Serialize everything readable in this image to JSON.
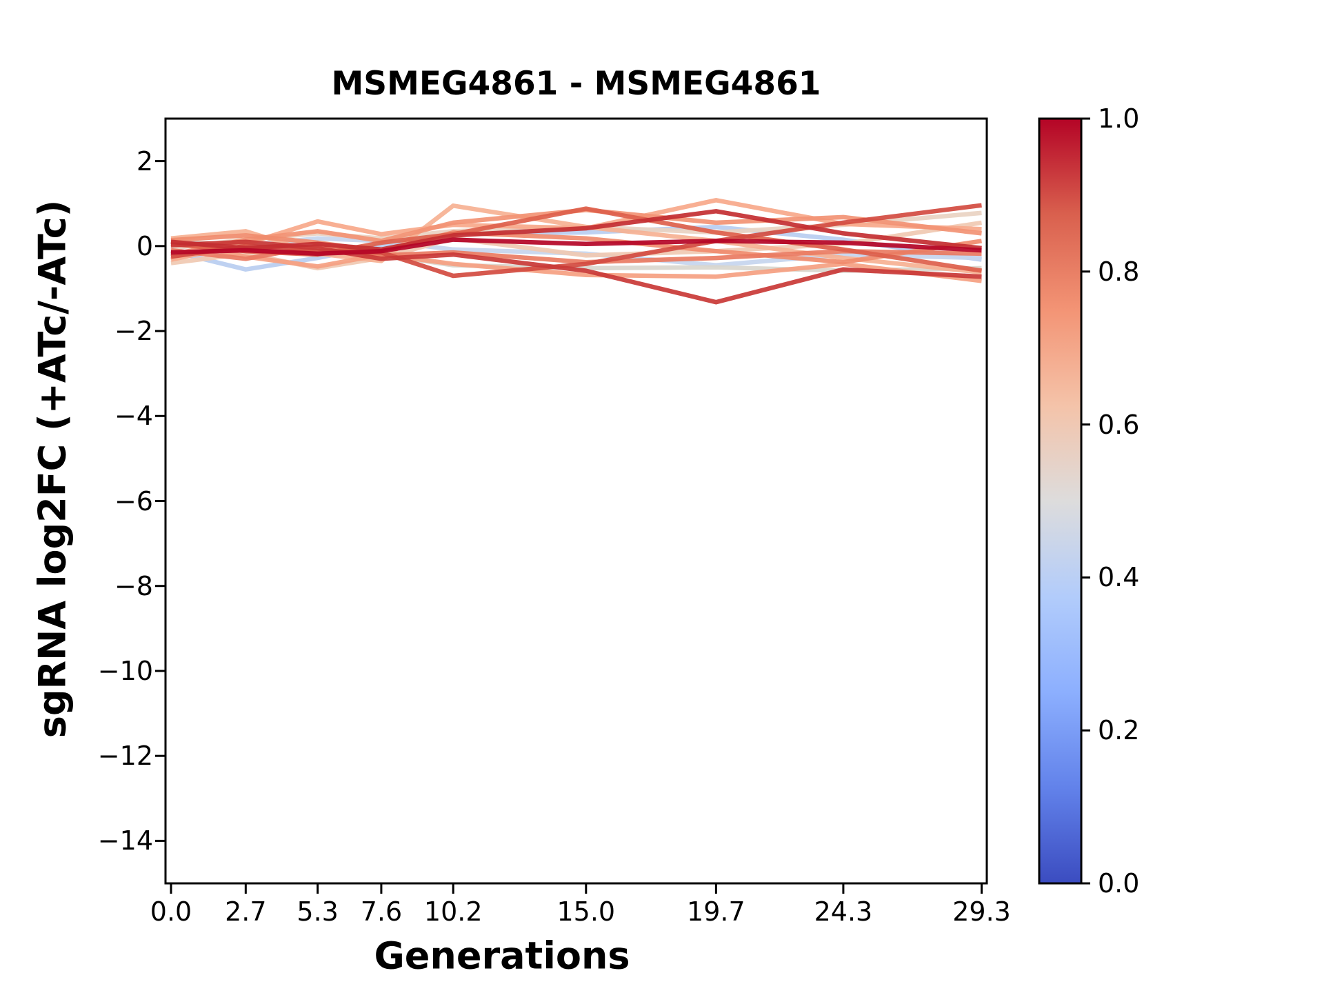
{
  "chart_data": {
    "type": "line",
    "title": "MSMEG4861 - MSMEG4861",
    "xlabel": "Generations",
    "ylabel": "sgRNA log2FC (+ATc/-ATc)",
    "x": [
      0.0,
      2.7,
      5.3,
      7.6,
      10.2,
      15.0,
      19.7,
      24.3,
      29.3
    ],
    "xtick_labels": [
      "0.0",
      "2.7",
      "5.3",
      "7.6",
      "10.2",
      "15.0",
      "19.7",
      "24.3",
      "29.3"
    ],
    "ytick_values": [
      2,
      0,
      -2,
      -4,
      -6,
      -8,
      -10,
      -12,
      -14
    ],
    "ytick_labels": [
      "2",
      "0",
      "−2",
      "−4",
      "−6",
      "−8",
      "−10",
      "−12",
      "−14"
    ],
    "ylim": [
      -15,
      3
    ],
    "xlim": [
      -0.2,
      29.5
    ],
    "grid": false,
    "legend": "none",
    "background": "#ffffff",
    "colorbar": {
      "orientation": "vertical",
      "colormap": "coolwarm",
      "tick_labels": [
        "1.0",
        "0.8",
        "0.6",
        "0.4",
        "0.2",
        "0.0"
      ],
      "tick_values": [
        1.0,
        0.8,
        0.6,
        0.4,
        0.2,
        0.0
      ],
      "stops": [
        {
          "pos": 0.0,
          "color": "#3b4cc0"
        },
        {
          "pos": 0.125,
          "color": "#6282ea"
        },
        {
          "pos": 0.25,
          "color": "#8caffe"
        },
        {
          "pos": 0.375,
          "color": "#b2ccfb"
        },
        {
          "pos": 0.5,
          "color": "#dddcdc"
        },
        {
          "pos": 0.625,
          "color": "#f4c3a9"
        },
        {
          "pos": 0.75,
          "color": "#f39475"
        },
        {
          "pos": 0.875,
          "color": "#d9604e"
        },
        {
          "pos": 1.0,
          "color": "#b40426"
        }
      ]
    },
    "series": [
      {
        "colormap_value": 0.38,
        "color": "#b8cdf0",
        "y": [
          -0.12,
          -0.55,
          -0.28,
          0.02,
          0.3,
          0.32,
          0.45,
          0.15,
          -0.32
        ]
      },
      {
        "colormap_value": 0.43,
        "color": "#c6d5ee",
        "y": [
          0.08,
          0.02,
          0.18,
          0.12,
          -0.08,
          -0.18,
          -0.45,
          -0.2,
          -0.28
        ]
      },
      {
        "colormap_value": 0.5,
        "color": "#d9d6cd",
        "y": [
          0.1,
          0.04,
          -0.08,
          -0.2,
          -0.45,
          -0.52,
          -0.5,
          -0.58,
          -0.52
        ]
      },
      {
        "colormap_value": 0.56,
        "color": "#e9d3c2",
        "y": [
          -0.05,
          0.15,
          0.3,
          0.18,
          0.35,
          0.45,
          0.32,
          0.5,
          0.78
        ]
      },
      {
        "colormap_value": 0.6,
        "color": "#f0c9b2",
        "y": [
          -0.4,
          -0.18,
          -0.52,
          -0.28,
          0.18,
          -0.22,
          -0.12,
          0.05,
          0.55
        ]
      },
      {
        "colormap_value": 0.66,
        "color": "#f6b193",
        "y": [
          0.18,
          0.35,
          -0.18,
          -0.35,
          0.95,
          0.45,
          0.12,
          -0.28,
          -0.62
        ]
      },
      {
        "colormap_value": 0.7,
        "color": "#f7a88a",
        "y": [
          -0.32,
          0.05,
          0.58,
          0.28,
          0.5,
          0.42,
          1.08,
          0.52,
          0.4
        ]
      },
      {
        "colormap_value": 0.72,
        "color": "#f5a081",
        "y": [
          0.12,
          -0.25,
          -0.48,
          -0.2,
          -0.42,
          -0.68,
          -0.72,
          -0.42,
          -0.82
        ]
      },
      {
        "colormap_value": 0.75,
        "color": "#f29274",
        "y": [
          -0.2,
          0.15,
          0.35,
          0.12,
          0.55,
          0.85,
          0.55,
          0.68,
          0.3
        ]
      },
      {
        "colormap_value": 0.78,
        "color": "#f08b6c",
        "y": [
          0.14,
          0.25,
          0.08,
          -0.12,
          0.32,
          0.18,
          -0.12,
          -0.38,
          0.12
        ]
      },
      {
        "colormap_value": 0.82,
        "color": "#e97b62",
        "y": [
          -0.1,
          -0.3,
          0.0,
          -0.22,
          -0.15,
          -0.38,
          -0.28,
          -0.12,
          -0.18
        ]
      },
      {
        "colormap_value": 0.87,
        "color": "#dd5f4b",
        "y": [
          0.05,
          -0.12,
          -0.2,
          0.08,
          0.28,
          0.88,
          0.32,
          -0.08,
          -0.58
        ]
      },
      {
        "colormap_value": 0.91,
        "color": "#d24b40",
        "y": [
          -0.25,
          0.0,
          -0.12,
          -0.15,
          -0.7,
          -0.42,
          0.12,
          0.55,
          0.96
        ]
      },
      {
        "colormap_value": 0.94,
        "color": "#c93836",
        "y": [
          0.02,
          0.1,
          -0.05,
          -0.3,
          -0.2,
          -0.58,
          -1.32,
          -0.55,
          -0.72
        ]
      },
      {
        "colormap_value": 0.96,
        "color": "#c32e31",
        "y": [
          0.1,
          -0.05,
          0.05,
          -0.08,
          0.25,
          0.42,
          0.82,
          0.3,
          -0.05
        ]
      },
      {
        "colormap_value": 1.0,
        "color": "#b40426",
        "y": [
          -0.15,
          -0.1,
          -0.18,
          -0.12,
          0.15,
          0.05,
          0.12,
          0.08,
          -0.1
        ]
      }
    ]
  }
}
